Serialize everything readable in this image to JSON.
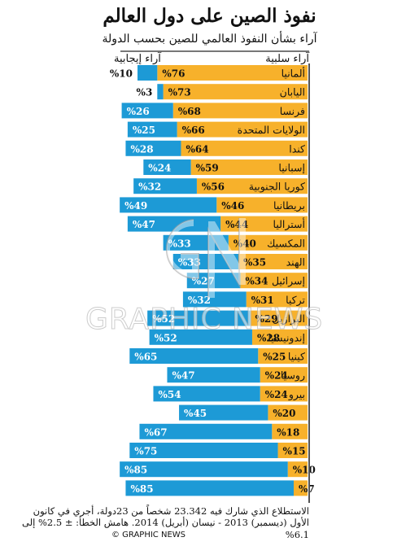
{
  "header": {
    "title": "نفوذ الصين على دول العالم",
    "subtitle": "آراء بشأن النفوذ العالمي للصين بحسب الدولة",
    "negative_label": "آراء سلبية",
    "positive_label": "آراء إيجابية"
  },
  "footer": {
    "note": "الاستطلاع الذي شارك فيه 23.342 شخصاً من 23دولة، أجري في كانون الأول (ديسمبر) 2013 - نيسان (أبريل) 2014. هامش الخطأ: ± 2.5% إلى 6.1%",
    "credit": "© GRAPHIC NEWS"
  },
  "watermark": {
    "text": "GRAPHIC NEWS"
  },
  "colors": {
    "negative": "#f7b12b",
    "positive": "#1d9ad6",
    "label_bg": "#ffffff"
  },
  "chart_data": {
    "type": "bar",
    "orientation": "horizontal-diverging",
    "unit": "%",
    "series": [
      {
        "name": "آراء سلبية",
        "key": "negative"
      },
      {
        "name": "آراء إيجابية",
        "key": "positive"
      }
    ],
    "rows": [
      {
        "country": "ألمانيا",
        "negative": 76,
        "positive": 10
      },
      {
        "country": "اليابان",
        "negative": 73,
        "positive": 3
      },
      {
        "country": "فرنسا",
        "negative": 68,
        "positive": 26
      },
      {
        "country": "الولايات المتحدة",
        "negative": 66,
        "positive": 25
      },
      {
        "country": "كندا",
        "negative": 64,
        "positive": 28
      },
      {
        "country": "إسبانيا",
        "negative": 59,
        "positive": 24
      },
      {
        "country": "كوريا الجنوبية",
        "negative": 56,
        "positive": 32
      },
      {
        "country": "بريطانيا",
        "negative": 46,
        "positive": 49
      },
      {
        "country": "أستراليا",
        "negative": 44,
        "positive": 47
      },
      {
        "country": "المكسيك",
        "negative": 40,
        "positive": 33
      },
      {
        "country": "الهند",
        "negative": 35,
        "positive": 33
      },
      {
        "country": "إسرائيل",
        "negative": 34,
        "positive": 27
      },
      {
        "country": "تركيا",
        "negative": 31,
        "positive": 32
      },
      {
        "country": "البرازيل",
        "negative": 29,
        "positive": 52
      },
      {
        "country": "إندونيسيا",
        "negative": 28,
        "positive": 52
      },
      {
        "country": "كينيا",
        "negative": 25,
        "positive": 65
      },
      {
        "country": "روسيا",
        "negative": 24,
        "positive": 47
      },
      {
        "country": "بيرو",
        "negative": 24,
        "positive": 54
      },
      {
        "country": "",
        "negative": 20,
        "positive": 45
      },
      {
        "country": "",
        "negative": 18,
        "positive": 67
      },
      {
        "country": "",
        "negative": 15,
        "positive": 75
      },
      {
        "country": "",
        "negative": 10,
        "positive": 85
      },
      {
        "country": "",
        "negative": 7,
        "positive": 85
      }
    ]
  }
}
